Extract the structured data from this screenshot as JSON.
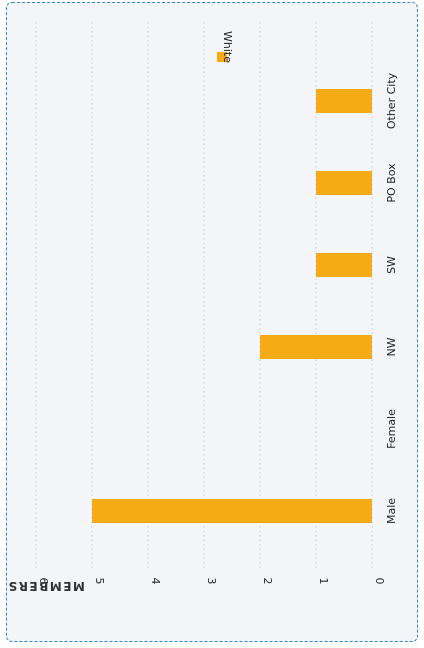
{
  "chart_data": {
    "type": "bar",
    "orientation": "rotated-90",
    "categories": [
      "Male",
      "Female",
      "NW",
      "SW",
      "PO Box",
      "Other City"
    ],
    "series": [
      {
        "name": "White",
        "values": [
          5,
          0,
          2,
          1,
          1,
          1
        ],
        "color": "#f5ab16"
      }
    ],
    "ylabel": "MEMBERS",
    "xlabel": "",
    "title": "",
    "ylim": [
      0,
      6
    ],
    "yticks": [
      0,
      1,
      2,
      3,
      4,
      5,
      6
    ],
    "grid": true,
    "legend_position": "top-right"
  }
}
